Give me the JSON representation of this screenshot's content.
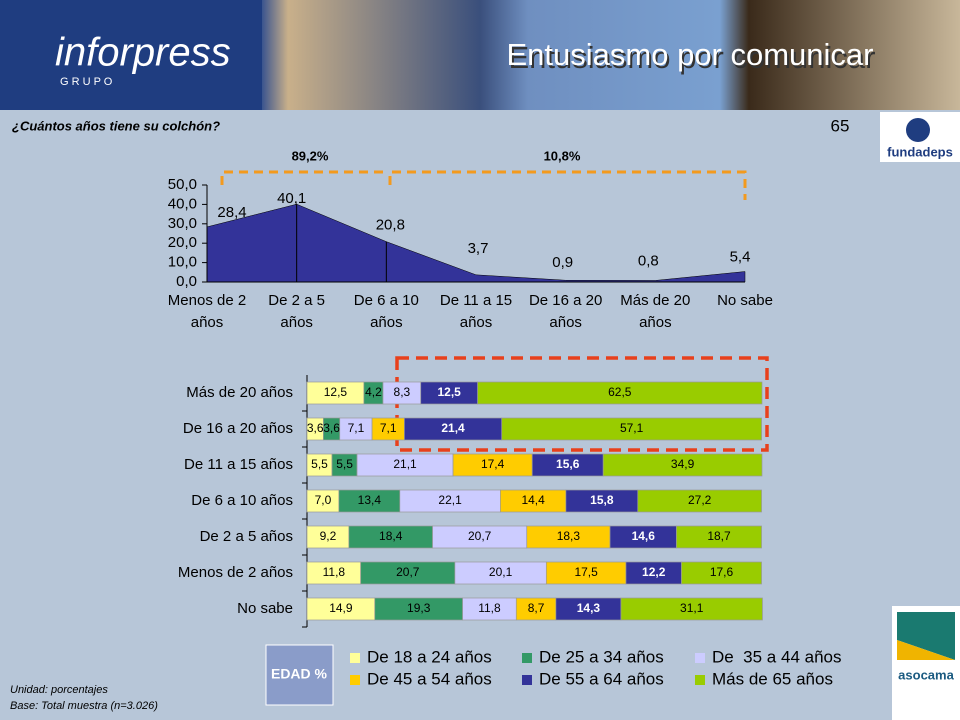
{
  "header": {
    "logo": "inforpress",
    "logo_sub": "G R U P O",
    "title": "Entusiasmo por comunicar",
    "page": "65"
  },
  "question": "¿Cuántos años tiene su colchón?",
  "logos": [
    "fundadeps",
    "asocama"
  ],
  "footnotes": [
    "Unidad: porcentajes",
    "Base: Total muestra (n=3.026)"
  ],
  "chart_data": [
    {
      "type": "area",
      "categories": [
        "Menos de 2 años",
        "De 2 a 5 años",
        "De 6 a 10 años",
        "De 11 a 15 años",
        "De 16 a 20 años",
        "Más de 20 años",
        "No sabe"
      ],
      "values": [
        28.4,
        40.1,
        20.8,
        3.7,
        0.9,
        0.8,
        5.4
      ],
      "value_labels": [
        "28,4",
        "40,1",
        "20,8",
        "3,7",
        "0,9",
        "0,8",
        "5,4"
      ],
      "color": "#333399",
      "ylim": [
        0,
        50
      ],
      "yticks": [
        {
          "value": 0,
          "label": "0,0"
        },
        {
          "value": 10,
          "label": "10,0"
        },
        {
          "value": 20,
          "label": "20,0"
        },
        {
          "value": 30,
          "label": "30,0"
        },
        {
          "value": 40,
          "label": "40,0"
        },
        {
          "value": 50,
          "label": "50,0"
        }
      ],
      "annotations": [
        "89,2%",
        "10,8%"
      ]
    },
    {
      "type": "stacked-barh",
      "categories": [
        "Más de 20 años",
        "De 16 a 20 años",
        "De 11 a 15 años",
        "De 6 a 10 años",
        "De 2 a 5 años",
        "Menos de 2 años",
        "No sabe"
      ],
      "xlim": [
        0,
        100
      ],
      "legend_title": "EDAD %",
      "series": [
        {
          "name": "De 18 a 24 años",
          "color": "#ffff99",
          "values": [
            12.5,
            3.6,
            5.5,
            7.0,
            9.2,
            11.8,
            14.9
          ],
          "value_labels": [
            "12,5",
            "3,6",
            "5,5",
            "7,0",
            "9,2",
            "11,8",
            "14,9"
          ]
        },
        {
          "name": "De 25 a 34 años",
          "color": "#339966",
          "values": [
            4.2,
            3.6,
            5.5,
            13.4,
            18.4,
            20.7,
            19.3
          ],
          "value_labels": [
            "4,2",
            "3,6",
            "5,5",
            "13,4",
            "18,4",
            "20,7",
            "19,3"
          ]
        },
        {
          "name": "De  35 a 44 años",
          "color": "#ccccff",
          "values": [
            8.3,
            7.1,
            21.1,
            22.1,
            20.7,
            20.1,
            11.8
          ],
          "value_labels": [
            "8,3",
            "7,1",
            "21,1",
            "22,1",
            "20,7",
            "20,1",
            "11,8"
          ]
        },
        {
          "name": "De 45 a 54 años",
          "color": "#ffcc00",
          "values": [
            null,
            7.1,
            17.4,
            14.4,
            18.3,
            17.5,
            8.7
          ],
          "value_labels": [
            null,
            "7,1",
            "17,4",
            "14,4",
            "18,3",
            "17,5",
            "8,7"
          ]
        },
        {
          "name": "De 55 a 64 años",
          "color": "#333399",
          "values": [
            12.5,
            21.4,
            15.6,
            15.8,
            14.6,
            12.2,
            14.3
          ],
          "value_labels": [
            "12,5",
            "21,4",
            "15,6",
            "15,8",
            "14,6",
            "12,2",
            "14,3"
          ]
        },
        {
          "name": "Más de 65 años",
          "color": "#99cc00",
          "values": [
            62.5,
            57.1,
            34.9,
            27.2,
            18.7,
            17.6,
            31.1
          ],
          "value_labels": [
            "62,5",
            "57,1",
            "34,9",
            "27,2",
            "18,7",
            "17,6",
            "31,1"
          ]
        }
      ]
    }
  ]
}
